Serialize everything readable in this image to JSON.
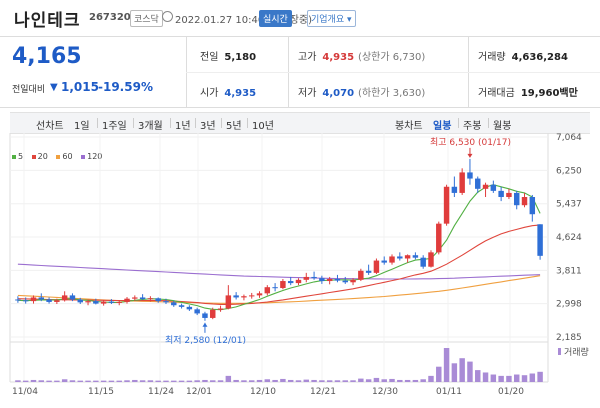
{
  "header": {
    "name": "나인테크",
    "code": "267320",
    "market": "코스닥",
    "datetime": "2022.01.27 10:40 기준(장중)",
    "live": "실시간",
    "info": "기업개요 ▾"
  },
  "quote": {
    "price": "4,165",
    "change_label": "전일대비",
    "change_arrow": "▼",
    "change_value": "1,015",
    "change_pct": "-19.59%",
    "prev_close_label": "전일",
    "prev_close": "5,180",
    "high_label": "고가",
    "high": "4,935",
    "upper_limit": "(상한가 6,730)",
    "volume_label": "거래량",
    "volume": "4,636,284",
    "open_label": "시가",
    "open": "4,935",
    "low_label": "저가",
    "low": "4,070",
    "lower_limit": "(하한가 3,630)",
    "amount_label": "거래대금",
    "amount": "19,960",
    "amount_unit": "백만"
  },
  "periods": {
    "label": "선차트",
    "items": [
      "1일",
      "1주일",
      "3개월",
      "1년",
      "3년",
      "5년",
      "10년"
    ],
    "candle_label": "봉차트",
    "candle_items": [
      "일봉",
      "주봉",
      "월봉"
    ],
    "active_candle": "일봉"
  },
  "colors": {
    "up": "#e03c3c",
    "down": "#2f6fd6",
    "ma5": "#52b043",
    "ma20": "#e0463c",
    "ma60": "#f0a040",
    "ma120": "#9b6fd0"
  },
  "chart_data": {
    "type": "candlestick",
    "legend": [
      "5",
      "20",
      "60",
      "120"
    ],
    "y_ticks": [
      2185,
      2998,
      3811,
      4624,
      5437,
      6250,
      7064
    ],
    "ylim": [
      2185,
      7064
    ],
    "x_labels": [
      "11/04",
      "11/15",
      "11/24",
      "12/01",
      "12/10",
      "12/21",
      "12/30",
      "01/11",
      "01/20"
    ],
    "high_annotation": "최고 6,530 (01/17)",
    "low_annotation": "최저 2,580 (12/01)",
    "volume_label": "거래량",
    "candles": [
      {
        "o": 3100,
        "h": 3180,
        "l": 3020,
        "c": 3080
      },
      {
        "o": 3080,
        "h": 3150,
        "l": 3000,
        "c": 3060
      },
      {
        "o": 3060,
        "h": 3200,
        "l": 3000,
        "c": 3150
      },
      {
        "o": 3150,
        "h": 3250,
        "l": 3060,
        "c": 3100
      },
      {
        "o": 3100,
        "h": 3150,
        "l": 3000,
        "c": 3040
      },
      {
        "o": 3040,
        "h": 3120,
        "l": 2990,
        "c": 3080
      },
      {
        "o": 3080,
        "h": 3300,
        "l": 3050,
        "c": 3200
      },
      {
        "o": 3200,
        "h": 3250,
        "l": 3060,
        "c": 3100
      },
      {
        "o": 3100,
        "h": 3140,
        "l": 2990,
        "c": 3030
      },
      {
        "o": 3030,
        "h": 3100,
        "l": 2960,
        "c": 3060
      },
      {
        "o": 3060,
        "h": 3120,
        "l": 2980,
        "c": 3000
      },
      {
        "o": 3000,
        "h": 3080,
        "l": 2950,
        "c": 3050
      },
      {
        "o": 3050,
        "h": 3110,
        "l": 2990,
        "c": 3020
      },
      {
        "o": 3020,
        "h": 3080,
        "l": 2960,
        "c": 3040
      },
      {
        "o": 3040,
        "h": 3160,
        "l": 3000,
        "c": 3120
      },
      {
        "o": 3120,
        "h": 3200,
        "l": 3060,
        "c": 3150
      },
      {
        "o": 3150,
        "h": 3230,
        "l": 3090,
        "c": 3110
      },
      {
        "o": 3110,
        "h": 3180,
        "l": 3050,
        "c": 3130
      },
      {
        "o": 3130,
        "h": 3150,
        "l": 3020,
        "c": 3060
      },
      {
        "o": 3060,
        "h": 3120,
        "l": 2990,
        "c": 3030
      },
      {
        "o": 3030,
        "h": 3070,
        "l": 2920,
        "c": 2960
      },
      {
        "o": 2960,
        "h": 3000,
        "l": 2880,
        "c": 2920
      },
      {
        "o": 2920,
        "h": 2960,
        "l": 2820,
        "c": 2860
      },
      {
        "o": 2860,
        "h": 2900,
        "l": 2720,
        "c": 2760
      },
      {
        "o": 2760,
        "h": 2800,
        "l": 2580,
        "c": 2650
      },
      {
        "o": 2650,
        "h": 2900,
        "l": 2620,
        "c": 2850
      },
      {
        "o": 2850,
        "h": 2950,
        "l": 2800,
        "c": 2880
      },
      {
        "o": 2880,
        "h": 3450,
        "l": 2860,
        "c": 3200
      },
      {
        "o": 3200,
        "h": 3280,
        "l": 3100,
        "c": 3150
      },
      {
        "o": 3150,
        "h": 3220,
        "l": 3080,
        "c": 3180
      },
      {
        "o": 3180,
        "h": 3260,
        "l": 3120,
        "c": 3200
      },
      {
        "o": 3200,
        "h": 3300,
        "l": 3140,
        "c": 3250
      },
      {
        "o": 3250,
        "h": 3450,
        "l": 3200,
        "c": 3400
      },
      {
        "o": 3400,
        "h": 3500,
        "l": 3300,
        "c": 3380
      },
      {
        "o": 3380,
        "h": 3600,
        "l": 3350,
        "c": 3550
      },
      {
        "o": 3550,
        "h": 3650,
        "l": 3450,
        "c": 3500
      },
      {
        "o": 3500,
        "h": 3620,
        "l": 3450,
        "c": 3580
      },
      {
        "o": 3580,
        "h": 3750,
        "l": 3520,
        "c": 3650
      },
      {
        "o": 3650,
        "h": 3780,
        "l": 3580,
        "c": 3620
      },
      {
        "o": 3620,
        "h": 3680,
        "l": 3480,
        "c": 3550
      },
      {
        "o": 3550,
        "h": 3650,
        "l": 3470,
        "c": 3600
      },
      {
        "o": 3600,
        "h": 3700,
        "l": 3520,
        "c": 3560
      },
      {
        "o": 3560,
        "h": 3650,
        "l": 3480,
        "c": 3520
      },
      {
        "o": 3520,
        "h": 3620,
        "l": 3450,
        "c": 3580
      },
      {
        "o": 3580,
        "h": 3850,
        "l": 3550,
        "c": 3800
      },
      {
        "o": 3800,
        "h": 3950,
        "l": 3700,
        "c": 3750
      },
      {
        "o": 3750,
        "h": 4100,
        "l": 3720,
        "c": 4050
      },
      {
        "o": 4050,
        "h": 4150,
        "l": 3950,
        "c": 4000
      },
      {
        "o": 4000,
        "h": 4200,
        "l": 3950,
        "c": 4150
      },
      {
        "o": 4150,
        "h": 4250,
        "l": 4050,
        "c": 4100
      },
      {
        "o": 4100,
        "h": 4200,
        "l": 4000,
        "c": 4180
      },
      {
        "o": 4180,
        "h": 4250,
        "l": 4080,
        "c": 4120
      },
      {
        "o": 4120,
        "h": 4180,
        "l": 3850,
        "c": 3900
      },
      {
        "o": 3900,
        "h": 4300,
        "l": 3880,
        "c": 4250
      },
      {
        "o": 4250,
        "h": 5000,
        "l": 4200,
        "c": 4950
      },
      {
        "o": 4950,
        "h": 5900,
        "l": 4900,
        "c": 5850
      },
      {
        "o": 5850,
        "h": 6100,
        "l": 5600,
        "c": 5700
      },
      {
        "o": 5700,
        "h": 6300,
        "l": 5650,
        "c": 6200
      },
      {
        "o": 6200,
        "h": 6530,
        "l": 5900,
        "c": 6050
      },
      {
        "o": 6050,
        "h": 6100,
        "l": 5700,
        "c": 5800
      },
      {
        "o": 5800,
        "h": 5950,
        "l": 5600,
        "c": 5900
      },
      {
        "o": 5900,
        "h": 6000,
        "l": 5700,
        "c": 5750
      },
      {
        "o": 5750,
        "h": 5850,
        "l": 5500,
        "c": 5600
      },
      {
        "o": 5600,
        "h": 5800,
        "l": 5550,
        "c": 5700
      },
      {
        "o": 5700,
        "h": 5750,
        "l": 5300,
        "c": 5400
      },
      {
        "o": 5400,
        "h": 5700,
        "l": 5350,
        "c": 5600
      },
      {
        "o": 5600,
        "h": 5650,
        "l": 5000,
        "c": 5180
      },
      {
        "o": 4935,
        "h": 4935,
        "l": 4070,
        "c": 4165
      }
    ],
    "volumes": [
      5,
      4,
      6,
      5,
      4,
      4,
      8,
      5,
      4,
      4,
      4,
      4,
      4,
      4,
      5,
      6,
      5,
      5,
      4,
      4,
      4,
      4,
      4,
      5,
      6,
      5,
      5,
      18,
      6,
      5,
      5,
      6,
      8,
      6,
      9,
      6,
      5,
      7,
      6,
      5,
      5,
      5,
      5,
      5,
      10,
      8,
      12,
      8,
      9,
      6,
      6,
      6,
      8,
      18,
      45,
      100,
      55,
      70,
      60,
      35,
      28,
      22,
      18,
      18,
      22,
      20,
      25,
      30
    ],
    "ma5": [
      3080,
      3070,
      3080,
      3090,
      3090,
      3090,
      3110,
      3120,
      3090,
      3080,
      3050,
      3040,
      3030,
      3030,
      3050,
      3080,
      3100,
      3120,
      3110,
      3100,
      3070,
      3030,
      2990,
      2950,
      2890,
      2860,
      2850,
      2880,
      2920,
      2980,
      3040,
      3100,
      3180,
      3250,
      3320,
      3380,
      3430,
      3480,
      3530,
      3560,
      3570,
      3580,
      3580,
      3570,
      3600,
      3620,
      3680,
      3760,
      3840,
      3920,
      4000,
      4060,
      4080,
      4100,
      4300,
      4550,
      4900,
      5200,
      5500,
      5720,
      5840,
      5900,
      5850,
      5800,
      5740,
      5700,
      5600,
      5200
    ],
    "ma20": [
      3120,
      3115,
      3110,
      3105,
      3100,
      3095,
      3095,
      3090,
      3088,
      3085,
      3082,
      3080,
      3078,
      3076,
      3075,
      3075,
      3074,
      3073,
      3072,
      3070,
      3060,
      3050,
      3040,
      3025,
      3005,
      2990,
      2980,
      2980,
      2985,
      2995,
      3005,
      3020,
      3040,
      3065,
      3090,
      3120,
      3150,
      3180,
      3210,
      3240,
      3270,
      3300,
      3330,
      3360,
      3400,
      3440,
      3480,
      3520,
      3560,
      3600,
      3650,
      3700,
      3740,
      3790,
      3870,
      3960,
      4070,
      4180,
      4300,
      4420,
      4530,
      4620,
      4700,
      4760,
      4810,
      4860,
      4900,
      4920
    ],
    "ma60": [
      3200,
      3190,
      3180,
      3170,
      3160,
      3150,
      3140,
      3130,
      3120,
      3110,
      3100,
      3090,
      3080,
      3070,
      3065,
      3060,
      3055,
      3050,
      3045,
      3040,
      3035,
      3030,
      3025,
      3020,
      3015,
      3010,
      3008,
      3006,
      3006,
      3008,
      3012,
      3016,
      3020,
      3028,
      3036,
      3044,
      3052,
      3062,
      3072,
      3082,
      3092,
      3102,
      3112,
      3122,
      3134,
      3146,
      3160,
      3174,
      3190,
      3206,
      3224,
      3242,
      3260,
      3280,
      3300,
      3325,
      3350,
      3380,
      3410,
      3440,
      3470,
      3500,
      3530,
      3560,
      3590,
      3620,
      3650,
      3680
    ],
    "ma120": [
      3960,
      3950,
      3940,
      3930,
      3920,
      3910,
      3900,
      3890,
      3880,
      3870,
      3860,
      3850,
      3840,
      3830,
      3820,
      3810,
      3800,
      3790,
      3780,
      3770,
      3760,
      3750,
      3740,
      3730,
      3720,
      3710,
      3700,
      3690,
      3680,
      3670,
      3665,
      3660,
      3655,
      3650,
      3645,
      3640,
      3635,
      3630,
      3625,
      3620,
      3615,
      3612,
      3610,
      3608,
      3606,
      3604,
      3602,
      3600,
      3600,
      3600,
      3600,
      3602,
      3604,
      3606,
      3610,
      3615,
      3620,
      3628,
      3636,
      3644,
      3652,
      3660,
      3668,
      3676,
      3684,
      3692,
      3700,
      3705
    ]
  }
}
